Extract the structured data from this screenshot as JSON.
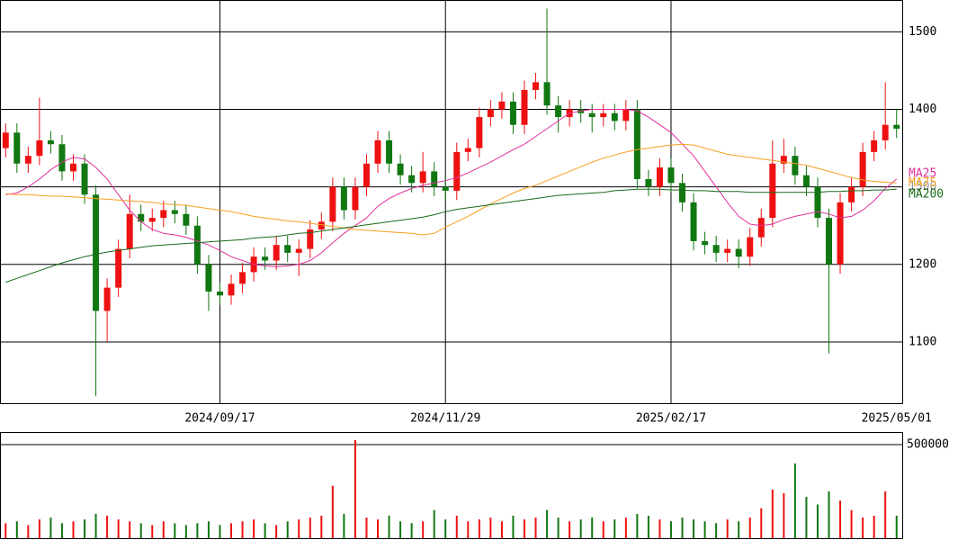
{
  "chart_data": [
    {
      "type": "candlestick",
      "categories": [
        null,
        null,
        null,
        null,
        null,
        null,
        null,
        null,
        null,
        null,
        null,
        null,
        null,
        null,
        null,
        null,
        null,
        null,
        null,
        "2024/09/17",
        null,
        null,
        null,
        null,
        null,
        null,
        null,
        null,
        null,
        null,
        null,
        null,
        null,
        null,
        null,
        null,
        null,
        null,
        null,
        "2024/11/29",
        null,
        null,
        null,
        null,
        null,
        null,
        null,
        null,
        null,
        null,
        null,
        null,
        null,
        null,
        null,
        null,
        null,
        null,
        null,
        "2025/02/17",
        null,
        null,
        null,
        null,
        null,
        null,
        null,
        null,
        null,
        null,
        null,
        null,
        null,
        null,
        null,
        null,
        null,
        null,
        null,
        "2025/05/01"
      ],
      "open": [
        1350,
        1370,
        1330,
        1340,
        1360,
        1355,
        1320,
        1330,
        1290,
        1140,
        1170,
        1220,
        1265,
        1255,
        1260,
        1270,
        1265,
        1250,
        1200,
        1165,
        1160,
        1175,
        1190,
        1210,
        1205,
        1225,
        1215,
        1220,
        1245,
        1255,
        1300,
        1270,
        1300,
        1330,
        1360,
        1330,
        1315,
        1305,
        1320,
        1300,
        1295,
        1345,
        1350,
        1390,
        1400,
        1410,
        1380,
        1425,
        1435,
        1405,
        1390,
        1400,
        1395,
        1390,
        1395,
        1385,
        1400,
        1310,
        1300,
        1325,
        1305,
        1280,
        1230,
        1225,
        1215,
        1220,
        1210,
        1235,
        1260,
        1330,
        1340,
        1315,
        1300,
        1260,
        1200,
        1280,
        1300,
        1345,
        1360,
        1380
      ],
      "high": [
        1382,
        1382,
        1352,
        1415,
        1372,
        1367,
        1342,
        1342,
        1302,
        1182,
        1232,
        1290,
        1277,
        1272,
        1282,
        1282,
        1277,
        1262,
        1212,
        1177,
        1187,
        1202,
        1222,
        1222,
        1237,
        1237,
        1232,
        1257,
        1267,
        1312,
        1312,
        1312,
        1342,
        1372,
        1372,
        1342,
        1327,
        1345,
        1332,
        1312,
        1357,
        1362,
        1402,
        1412,
        1422,
        1422,
        1437,
        1447,
        1530,
        1417,
        1412,
        1412,
        1407,
        1407,
        1407,
        1412,
        1412,
        1322,
        1337,
        1337,
        1317,
        1292,
        1242,
        1237,
        1232,
        1232,
        1247,
        1272,
        1360,
        1362,
        1352,
        1327,
        1312,
        1272,
        1292,
        1312,
        1357,
        1372,
        1435,
        1400
      ],
      "low": [
        1338,
        1318,
        1318,
        1328,
        1343,
        1308,
        1308,
        1278,
        1030,
        1100,
        1158,
        1208,
        1243,
        1243,
        1248,
        1253,
        1238,
        1188,
        1140,
        1148,
        1148,
        1163,
        1178,
        1193,
        1193,
        1203,
        1185,
        1208,
        1233,
        1243,
        1258,
        1258,
        1288,
        1318,
        1318,
        1303,
        1293,
        1293,
        1288,
        1283,
        1283,
        1333,
        1338,
        1378,
        1388,
        1368,
        1368,
        1413,
        1393,
        1370,
        1378,
        1383,
        1370,
        1378,
        1373,
        1373,
        1298,
        1288,
        1288,
        1293,
        1268,
        1218,
        1213,
        1203,
        1203,
        1195,
        1198,
        1223,
        1248,
        1318,
        1303,
        1288,
        1248,
        1085,
        1188,
        1268,
        1288,
        1333,
        1348,
        1363
      ],
      "close": [
        1370,
        1330,
        1340,
        1360,
        1355,
        1320,
        1330,
        1290,
        1140,
        1170,
        1220,
        1265,
        1255,
        1260,
        1270,
        1265,
        1250,
        1200,
        1165,
        1160,
        1175,
        1190,
        1210,
        1205,
        1225,
        1215,
        1220,
        1245,
        1255,
        1300,
        1270,
        1300,
        1330,
        1360,
        1330,
        1315,
        1305,
        1320,
        1300,
        1295,
        1345,
        1350,
        1390,
        1400,
        1410,
        1380,
        1425,
        1435,
        1405,
        1390,
        1400,
        1395,
        1390,
        1395,
        1385,
        1400,
        1310,
        1300,
        1325,
        1305,
        1280,
        1230,
        1225,
        1215,
        1220,
        1210,
        1235,
        1260,
        1330,
        1340,
        1315,
        1300,
        1260,
        1200,
        1280,
        1300,
        1345,
        1360,
        1380,
        1375
      ],
      "up_color": "#ee1111",
      "down_color": "#117711",
      "series": [
        {
          "name": "MA25",
          "color": "#e0309a",
          "values": [
            1290,
            1292,
            1300,
            1310,
            1322,
            1332,
            1338,
            1336,
            1325,
            1310,
            1290,
            1270,
            1255,
            1245,
            1240,
            1238,
            1235,
            1230,
            1225,
            1218,
            1210,
            1205,
            1200,
            1198,
            1197,
            1198,
            1200,
            1205,
            1215,
            1228,
            1240,
            1250,
            1260,
            1275,
            1285,
            1292,
            1298,
            1302,
            1305,
            1308,
            1312,
            1318,
            1325,
            1332,
            1340,
            1348,
            1355,
            1365,
            1375,
            1385,
            1395,
            1398,
            1400,
            1400,
            1400,
            1400,
            1398,
            1390,
            1380,
            1370,
            1355,
            1340,
            1320,
            1300,
            1280,
            1262,
            1252,
            1250,
            1252,
            1258,
            1262,
            1265,
            1268,
            1265,
            1260,
            1262,
            1270,
            1282,
            1298,
            1310
          ]
        },
        {
          "name": "MA75",
          "color": "#f5a020",
          "values": [
            1291,
            1290,
            1290,
            1289,
            1288,
            1288,
            1287,
            1286,
            1285,
            1284,
            1283,
            1282,
            1281,
            1280,
            1278,
            1277,
            1276,
            1274,
            1272,
            1270,
            1268,
            1265,
            1262,
            1260,
            1258,
            1256,
            1255,
            1253,
            1251,
            1249,
            1247,
            1245,
            1244,
            1243,
            1242,
            1241,
            1240,
            1238,
            1240,
            1248,
            1255,
            1262,
            1270,
            1278,
            1285,
            1292,
            1298,
            1302,
            1308,
            1314,
            1320,
            1326,
            1332,
            1337,
            1341,
            1345,
            1348,
            1350,
            1352,
            1354,
            1355,
            1354,
            1350,
            1346,
            1342,
            1340,
            1338,
            1336,
            1334,
            1332,
            1330,
            1328,
            1324,
            1320,
            1316,
            1312,
            1309,
            1307,
            1306,
            1305
          ]
        },
        {
          "name": "MA200",
          "color": "#1a6a1a",
          "values": [
            1177,
            1182,
            1187,
            1192,
            1197,
            1202,
            1206,
            1210,
            1213,
            1216,
            1218,
            1220,
            1222,
            1224,
            1225,
            1226,
            1227,
            1228,
            1229,
            1230,
            1231,
            1232,
            1234,
            1235,
            1236,
            1238,
            1240,
            1241,
            1243,
            1245,
            1247,
            1249,
            1251,
            1253,
            1255,
            1257,
            1259,
            1261,
            1264,
            1268,
            1271,
            1273,
            1275,
            1277,
            1279,
            1281,
            1283,
            1285,
            1287,
            1289,
            1290,
            1291,
            1292,
            1293,
            1295,
            1296,
            1297,
            1297,
            1297,
            1296,
            1296,
            1295,
            1295,
            1294,
            1294,
            1294,
            1293,
            1293,
            1293,
            1293,
            1293,
            1293,
            1293,
            1294,
            1294,
            1295,
            1295,
            1296,
            1296,
            1297
          ]
        }
      ],
      "ylim": [
        1021,
        1541
      ],
      "yticks": [
        1100,
        1200,
        1300,
        1400,
        1500
      ],
      "grid": true
    },
    {
      "type": "bar",
      "values": [
        80000,
        90000,
        70000,
        100000,
        110000,
        80000,
        90000,
        100000,
        130000,
        120000,
        100000,
        90000,
        80000,
        70000,
        90000,
        80000,
        70000,
        80000,
        90000,
        70000,
        80000,
        90000,
        100000,
        80000,
        70000,
        90000,
        100000,
        110000,
        120000,
        280000,
        130000,
        524000,
        110000,
        100000,
        120000,
        90000,
        80000,
        90000,
        150000,
        100000,
        120000,
        90000,
        100000,
        110000,
        90000,
        120000,
        100000,
        110000,
        150000,
        110000,
        90000,
        100000,
        110000,
        90000,
        100000,
        110000,
        130000,
        120000,
        100000,
        90000,
        110000,
        100000,
        90000,
        80000,
        100000,
        90000,
        110000,
        160000,
        260000,
        240000,
        399000,
        220000,
        180000,
        250000,
        200000,
        150000,
        110000,
        120000,
        250000,
        120000
      ],
      "ylim": [
        0,
        567000
      ],
      "yticks": [
        500000
      ]
    }
  ]
}
